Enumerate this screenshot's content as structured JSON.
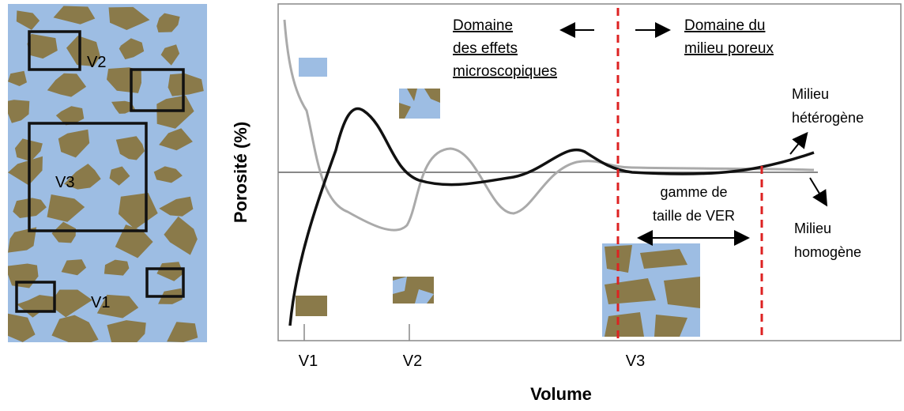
{
  "left_panel": {
    "labels": {
      "v1": "V1",
      "v2": "V2",
      "v3": "V3"
    }
  },
  "chart": {
    "y_axis_label": "Porosité (%)",
    "x_axis_label": "Volume",
    "x_ticks": [
      "V1",
      "V2",
      "V3"
    ],
    "microscopic_domain": [
      "Domaine",
      "des effets",
      "microscopiques"
    ],
    "porous_domain": [
      "Domaine du",
      "milieu poreux"
    ],
    "heterogeneous": [
      "Milieu",
      "hétérogène"
    ],
    "homogeneous": [
      "Milieu",
      "homogène"
    ],
    "rev_range": [
      "gamme de",
      "taille de VER"
    ]
  }
}
